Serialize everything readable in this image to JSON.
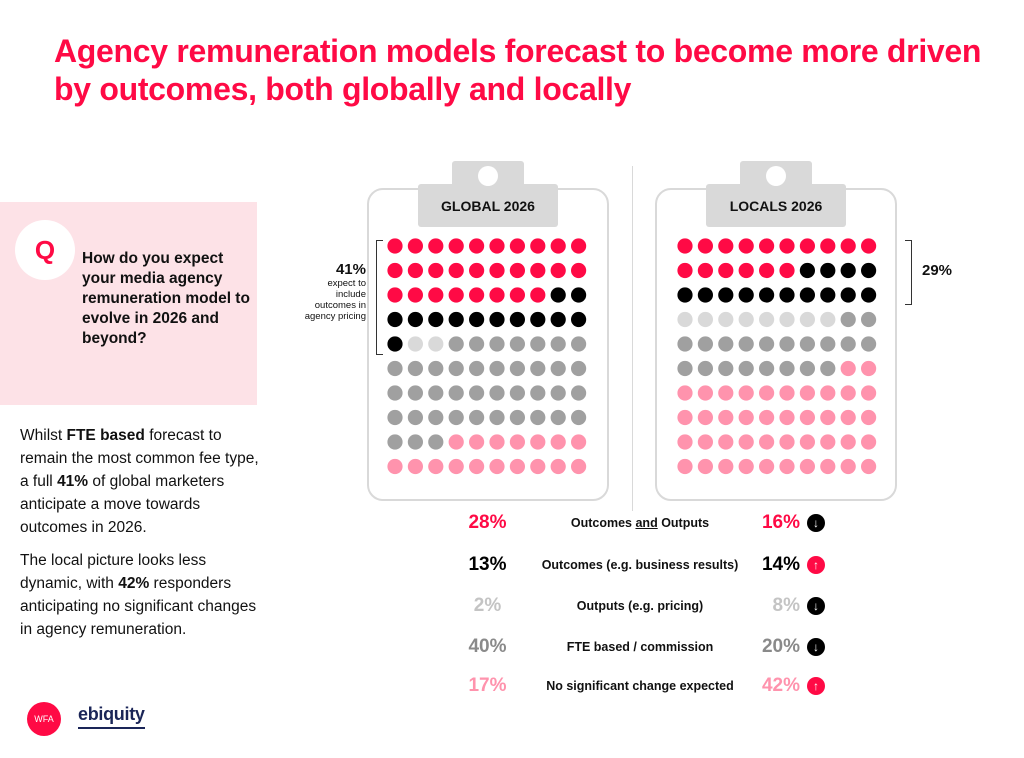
{
  "title": "Agency remuneration models forecast to become more driven by outcomes, both globally and locally",
  "question": {
    "badge": "Q",
    "text": "How do you expect your media agency remuneration model to evolve in 2026 and beyond?"
  },
  "body": {
    "p1": [
      {
        "t": "Whilst ",
        "b": false
      },
      {
        "t": "FTE based",
        "b": true
      },
      {
        "t": " forecast to remain the most common fee type, a full ",
        "b": false
      },
      {
        "t": "41%",
        "b": true
      },
      {
        "t": " of global marketers anticipate a move towards outcomes in 2026.",
        "b": false
      }
    ],
    "p2": [
      {
        "t": "The local picture looks less dynamic, with ",
        "b": false
      },
      {
        "t": "42%",
        "b": true
      },
      {
        "t": " responders anticipating no significant changes in agency remuneration.",
        "b": false
      }
    ]
  },
  "logos": {
    "wfa": "WFA",
    "ebiquity": "ebiquity"
  },
  "colors": {
    "accent": "#ff0a45",
    "outcomes_and_outputs": "#ff0a45",
    "outcomes": "#000000",
    "outputs": "#d9d9d9",
    "fte": "#a0a0a0",
    "no_change": "#ff93ad",
    "arrow_down": "#000000",
    "arrow_up": "#ff0a45"
  },
  "chart_data": {
    "type": "waffle",
    "grid": {
      "rows": 10,
      "cols": 10
    },
    "categories": [
      {
        "key": "outcomes_and_outputs",
        "label_pre": "Outcomes ",
        "label_u": "and",
        "label_post": " Outputs"
      },
      {
        "key": "outcomes",
        "label_pre": "Outcomes (e.g. business results)",
        "label_u": "",
        "label_post": ""
      },
      {
        "key": "outputs",
        "label_pre": "Outputs (e.g. pricing)",
        "label_u": "",
        "label_post": ""
      },
      {
        "key": "fte",
        "label_pre": "FTE based / commission",
        "label_u": "",
        "label_post": ""
      },
      {
        "key": "no_change",
        "label_pre": "No significant change expected",
        "label_u": "",
        "label_post": ""
      }
    ],
    "series": [
      {
        "name": "GLOBAL 2026",
        "values": [
          28,
          13,
          2,
          40,
          17
        ],
        "annotation": {
          "value": "41%",
          "text": "expect to include outcomes in agency pricing"
        }
      },
      {
        "name": "LOCALS 2026",
        "values": [
          16,
          14,
          8,
          20,
          42
        ],
        "annotation": {
          "value": "29%",
          "text": ""
        }
      }
    ],
    "value_labels": {
      "global": [
        "28%",
        "13%",
        "2%",
        "40%",
        "17%"
      ],
      "locals": [
        "16%",
        "14%",
        "8%",
        "20%",
        "42%"
      ]
    },
    "change_direction": [
      "down",
      "up",
      "down",
      "down",
      "up"
    ]
  }
}
